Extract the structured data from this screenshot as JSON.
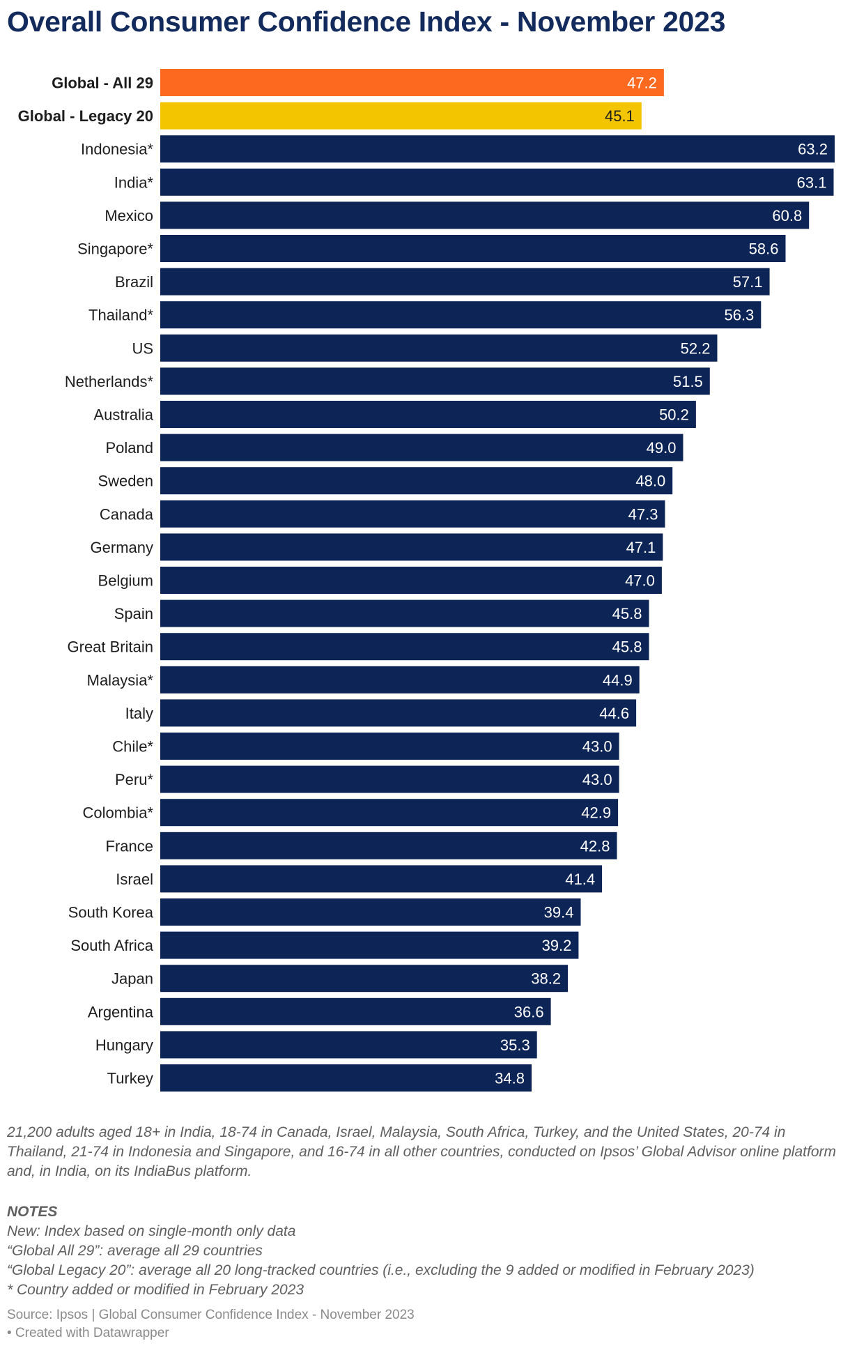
{
  "chart_data": {
    "type": "bar",
    "orientation": "horizontal",
    "title": "Overall Consumer Confidence Index - November 2023",
    "categories": [
      "Global - All 29",
      "Global - Legacy 20",
      "Indonesia*",
      "India*",
      "Mexico",
      "Singapore*",
      "Brazil",
      "Thailand*",
      "US",
      "Netherlands*",
      "Australia",
      "Poland",
      "Sweden",
      "Canada",
      "Germany",
      "Belgium",
      "Spain",
      "Great Britain",
      "Malaysia*",
      "Italy",
      "Chile*",
      "Peru*",
      "Colombia*",
      "France",
      "Israel",
      "South Korea",
      "South Africa",
      "Japan",
      "Argentina",
      "Hungary",
      "Turkey"
    ],
    "values": [
      47.2,
      45.1,
      63.2,
      63.1,
      60.8,
      58.6,
      57.1,
      56.3,
      52.2,
      51.5,
      50.2,
      49.0,
      48.0,
      47.3,
      47.1,
      47.0,
      45.8,
      45.8,
      44.9,
      44.6,
      43.0,
      43.0,
      42.9,
      42.8,
      41.4,
      39.4,
      39.2,
      38.2,
      36.6,
      35.3,
      34.8
    ],
    "value_labels": [
      "47.2",
      "45.1",
      "63.2",
      "63.1",
      "60.8",
      "58.6",
      "57.1",
      "56.3",
      "52.2",
      "51.5",
      "50.2",
      "49.0",
      "48.0",
      "47.3",
      "47.1",
      "47.0",
      "45.8",
      "45.8",
      "44.9",
      "44.6",
      "43.0",
      "43.0",
      "42.9",
      "42.8",
      "41.4",
      "39.4",
      "39.2",
      "38.2",
      "36.6",
      "35.3",
      "34.8"
    ],
    "bold_categories": [
      "Global - All 29",
      "Global - Legacy 20"
    ],
    "bar_colors": {
      "Global - All 29": "#fe6920",
      "Global - Legacy 20": "#f2c500",
      "default": "#0d2457"
    },
    "value_label_colors": {
      "light": "#ffffff",
      "dark": "#1d1d1d"
    },
    "dark_label_categories": [
      "Global - Legacy 20"
    ],
    "xlim": [
      0,
      63.2
    ],
    "grid": false,
    "legend": "none",
    "xlabel": "",
    "ylabel": ""
  },
  "description": "21,200 adults aged 18+ in India, 18-74 in Canada, Israel, Malaysia, South Africa, Turkey, and the United States, 20-74 in Thailand, 21-74 in Indonesia and Singapore, and 16-74 in all other countries, conducted on Ipsos’ Global Advisor online platform and, in India, on its IndiaBus platform.",
  "notes": {
    "heading": "NOTES",
    "lines": [
      "New: Index based on single-month only data",
      "“Global All 29”: average all 29 countries",
      "“Global Legacy 20”: average all 20 long-tracked countries (i.e., excluding the 9 added or modified in February 2023)",
      "* Country added or modified in February 2023"
    ]
  },
  "source": {
    "line1": "Source: Ipsos | Global Consumer Confidence Index - November 2023",
    "line2": "• Created with Datawrapper"
  }
}
